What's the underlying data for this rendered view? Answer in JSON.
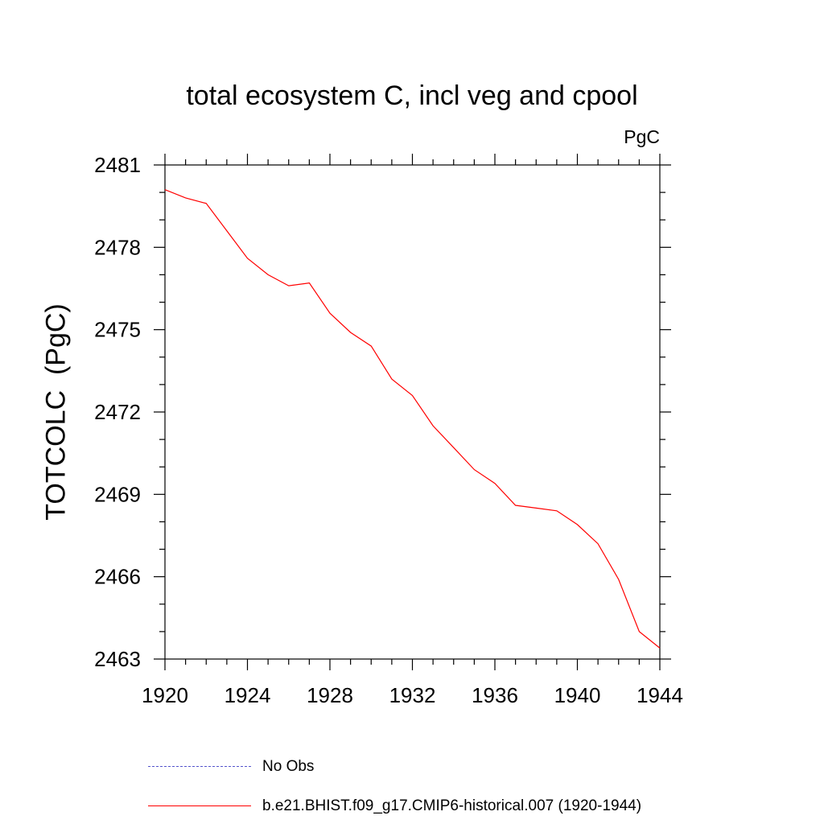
{
  "chart_data": {
    "type": "line",
    "title": "total ecosystem C, incl veg and cpool",
    "units": "PgC",
    "ylabel": "TOTCOLC  (PgC)",
    "xlabel": "",
    "xlim": [
      1920,
      1944
    ],
    "ylim": [
      2463,
      2481
    ],
    "xticks": [
      1920,
      1924,
      1928,
      1932,
      1936,
      1940,
      1944
    ],
    "yticks": [
      2463,
      2466,
      2469,
      2472,
      2475,
      2478,
      2481
    ],
    "grid": false,
    "legend_position": "bottom",
    "series": [
      {
        "name": "b.e21.BHIST.f09_g17.CMIP6-historical.007 (1920-1944)",
        "color": "#ff0000",
        "style": "solid",
        "x": [
          1920,
          1921,
          1922,
          1923,
          1924,
          1925,
          1926,
          1927,
          1928,
          1929,
          1930,
          1931,
          1932,
          1933,
          1934,
          1935,
          1936,
          1937,
          1938,
          1939,
          1940,
          1941,
          1942,
          1943,
          1944
        ],
        "y": [
          2480.1,
          2479.8,
          2479.6,
          2478.6,
          2477.6,
          2477.0,
          2476.6,
          2476.7,
          2475.6,
          2474.9,
          2474.4,
          2473.2,
          2472.6,
          2471.5,
          2470.7,
          2469.9,
          2469.4,
          2468.6,
          2468.5,
          2468.4,
          2467.9,
          2467.2,
          2465.9,
          2464.0,
          2463.4
        ]
      },
      {
        "name": "No Obs",
        "color": "#5555cc",
        "style": "dashed",
        "x": [],
        "y": []
      }
    ]
  }
}
